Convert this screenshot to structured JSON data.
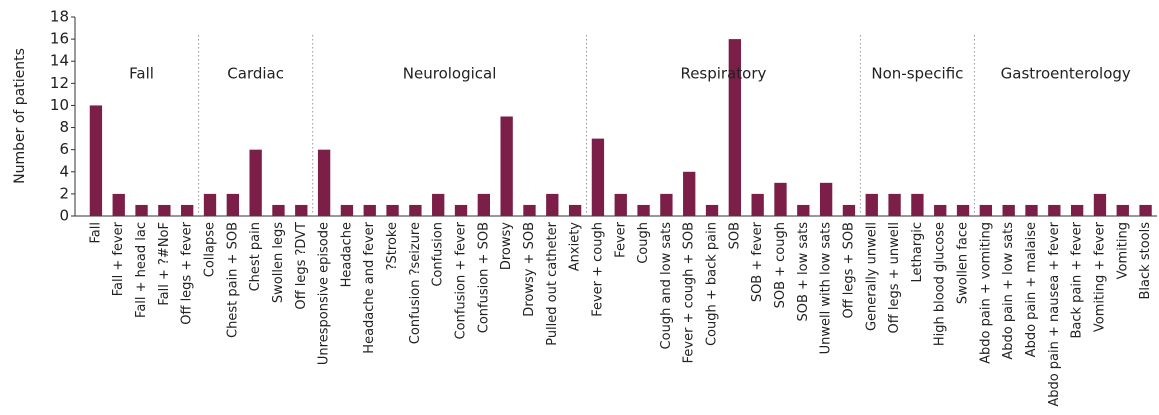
{
  "chart_data": {
    "type": "bar",
    "ylabel": "Number of patients",
    "color": "#7b1e48",
    "ylim": [
      0,
      18
    ],
    "yticks": [
      0,
      2,
      4,
      6,
      8,
      10,
      12,
      14,
      16,
      18
    ],
    "groups": [
      {
        "name": "Fall",
        "categories": [
          "Fall",
          "Fall + fever",
          "Fall + head lac",
          "Fall + ?#NoF",
          "Off legs + fever"
        ],
        "values": [
          10,
          2,
          1,
          1,
          1
        ]
      },
      {
        "name": "Cardiac",
        "categories": [
          "Collapse",
          "Chest pain + SOB",
          "Chest pain",
          "Swollen legs",
          "Off legs ?DVT"
        ],
        "values": [
          2,
          2,
          6,
          1,
          1
        ]
      },
      {
        "name": "Neurological",
        "categories": [
          "Unresponsive episode",
          "Headache",
          "Headache and fever",
          "?Stroke",
          "Confusion ?seizure",
          "Confusion",
          "Confusion + fever",
          "Confusion + SOB",
          "Drowsy",
          "Drowsy + SOB",
          "Pulled out catheter",
          "Anxiety"
        ],
        "values": [
          6,
          1,
          1,
          1,
          1,
          2,
          1,
          2,
          9,
          1,
          2,
          1
        ]
      },
      {
        "name": "Respiratory",
        "categories": [
          "Fever + cough",
          "Fever",
          "Cough",
          "Cough and low sats",
          "Fever + cough + SOB",
          "Cough + back pain",
          "SOB",
          "SOB + fever",
          "SOB + cough",
          "SOB + low sats",
          "Unwell with low sats",
          "Off legs + SOB"
        ],
        "values": [
          7,
          2,
          1,
          2,
          4,
          1,
          16,
          2,
          3,
          1,
          3,
          1
        ]
      },
      {
        "name": "Non-specific",
        "categories": [
          "Generally unwell",
          "Off legs + unwell",
          "Lethargic",
          "High blood glucose",
          "Swollen face"
        ],
        "values": [
          2,
          2,
          2,
          1,
          1
        ]
      },
      {
        "name": "Gastroenterology",
        "categories": [
          "Abdo pain + vomiting",
          "Abdo pain + low sats",
          "Abdo pain + malaise",
          "Abdo pain + nausea + fever",
          "Back pain + fever",
          "Vomiting + fever",
          "Vomiting",
          "Black stools"
        ],
        "values": [
          1,
          1,
          1,
          1,
          1,
          2,
          1,
          1
        ]
      }
    ]
  }
}
